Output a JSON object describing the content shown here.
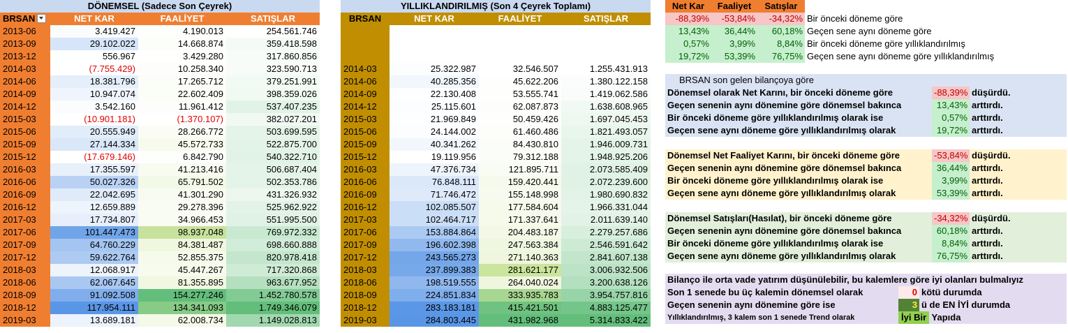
{
  "left": {
    "title": "DÖNEMSEL (Sadece Son Çeyrek)",
    "headers": [
      "BRSAN",
      "NET KAR",
      "FAALİYET",
      "SATIŞLAR"
    ],
    "rows": [
      [
        "2013-06",
        "3.419.427",
        "4.190.013",
        "254.561.746"
      ],
      [
        "2013-09",
        "29.102.022",
        "14.668.874",
        "359.418.598"
      ],
      [
        "2013-12",
        "556.967",
        "3.429.280",
        "317.860.856"
      ],
      [
        "2014-03",
        "(7.755.429)",
        "10.258.340",
        "323.590.713"
      ],
      [
        "2014-06",
        "18.381.796",
        "17.265.712",
        "379.251.991"
      ],
      [
        "2014-09",
        "10.947.074",
        "22.602.409",
        "398.359.026"
      ],
      [
        "2014-12",
        "3.542.160",
        "11.961.412",
        "537.407.235"
      ],
      [
        "2015-03",
        "(10.901.181)",
        "(1.370.107)",
        "382.027.201"
      ],
      [
        "2015-06",
        "20.555.949",
        "28.266.772",
        "503.699.595"
      ],
      [
        "2015-09",
        "27.144.334",
        "45.572.733",
        "522.875.700"
      ],
      [
        "2015-12",
        "(17.679.146)",
        "6.842.790",
        "540.322.710"
      ],
      [
        "2016-03",
        "17.355.597",
        "41.213.416",
        "506.687.404"
      ],
      [
        "2016-06",
        "50.027.326",
        "65.791.502",
        "502.353.786"
      ],
      [
        "2016-09",
        "22.042.695",
        "41.301.290",
        "431.326.932"
      ],
      [
        "2016-12",
        "12.659.889",
        "29.278.396",
        "525.962.922"
      ],
      [
        "2017-03",
        "17.734.807",
        "34.966.453",
        "551.995.500"
      ],
      [
        "2017-06",
        "101.447.473",
        "98.937.048",
        "769.972.332"
      ],
      [
        "2017-09",
        "64.760.229",
        "84.381.487",
        "698.660.888"
      ],
      [
        "2017-12",
        "59.622.764",
        "52.855.375",
        "820.978.418"
      ],
      [
        "2018-03",
        "12.068.917",
        "45.447.267",
        "717.320.868"
      ],
      [
        "2018-06",
        "62.067.645",
        "81.355.895",
        "963.677.952"
      ],
      [
        "2018-09",
        "91.092.508",
        "154.277.246",
        "1.452.780.578"
      ],
      [
        "2018-12",
        "117.954.111",
        "134.341.093",
        "1.749.346.079"
      ],
      [
        "2019-03",
        "13.689.181",
        "62.008.734",
        "1.149.028.813"
      ]
    ]
  },
  "middle": {
    "title": "YILLIKLANDIRILMIŞ (Son 4 Çeyrek Toplamı)",
    "headers": [
      "BRSAN",
      "NET KAR",
      "FAALİYET",
      "SATIŞLAR"
    ],
    "rows": [
      [
        "2014-03",
        "25.322.987",
        "32.546.507",
        "1.255.431.913"
      ],
      [
        "2014-06",
        "40.285.356",
        "45.622.206",
        "1.380.122.158"
      ],
      [
        "2014-09",
        "22.130.408",
        "53.555.741",
        "1.419.062.586"
      ],
      [
        "2014-12",
        "25.115.601",
        "62.087.873",
        "1.638.608.965"
      ],
      [
        "2015-03",
        "21.969.849",
        "50.459.426",
        "1.697.045.453"
      ],
      [
        "2015-06",
        "24.144.002",
        "61.460.486",
        "1.821.493.057"
      ],
      [
        "2015-09",
        "40.341.262",
        "84.430.810",
        "1.946.009.731"
      ],
      [
        "2015-12",
        "19.119.956",
        "79.312.188",
        "1.948.925.206"
      ],
      [
        "2016-03",
        "47.376.734",
        "121.895.711",
        "2.073.585.409"
      ],
      [
        "2016-06",
        "76.848.111",
        "159.420.441",
        "2.072.239.600"
      ],
      [
        "2016-09",
        "71.746.472",
        "155.148.998",
        "1.980.690.832"
      ],
      [
        "2016-12",
        "102.085.507",
        "177.584.604",
        "1.966.331.044"
      ],
      [
        "2017-03",
        "102.464.717",
        "171.337.641",
        "2.011.639.140"
      ],
      [
        "2017-06",
        "153.884.864",
        "204.483.187",
        "2.279.257.686"
      ],
      [
        "2017-09",
        "196.602.398",
        "247.563.384",
        "2.546.591.642"
      ],
      [
        "2017-12",
        "243.565.273",
        "271.140.363",
        "2.841.607.138"
      ],
      [
        "2018-03",
        "237.899.383",
        "281.621.177",
        "3.006.932.506"
      ],
      [
        "2018-06",
        "198.519.555",
        "264.040.024",
        "3.200.638.126"
      ],
      [
        "2018-09",
        "224.851.834",
        "333.935.783",
        "3.954.757.816"
      ],
      [
        "2018-12",
        "283.183.181",
        "415.421.501",
        "4.883.125.477"
      ],
      [
        "2019-03",
        "284.803.445",
        "431.982.968",
        "5.314.833.422"
      ]
    ]
  },
  "right": {
    "headers": [
      "Net Kar",
      "Faaliyet",
      "Satışlar"
    ],
    "summary": [
      [
        "-88,39%",
        "-53,84%",
        "-34,32%",
        "Bir önceki döneme göre"
      ],
      [
        "13,43%",
        "36,44%",
        "60,18%",
        "Geçen sene aynı döneme göre"
      ],
      [
        "0,57%",
        "3,99%",
        "8,84%",
        "Bir önceki döneme göre yıllıklandırılmış"
      ],
      [
        "19,72%",
        "53,39%",
        "76,75%",
        "Geçen sene aynı döneme göre yıllıklandırılmış"
      ]
    ],
    "intro": "BRSAN   son gelen bilançoya göre",
    "netkar": [
      [
        "Dönemsel olarak Net Karını, bir önceki döneme göre",
        "-88,39%",
        "düşürdü."
      ],
      [
        "Geçen senenin aynı dönemine göre dönemsel bakınca",
        "13,43%",
        "arttırdı."
      ],
      [
        "Bir önceki döneme göre yıllıklandırılmış olarak ise",
        "0,57%",
        "arttırdı."
      ],
      [
        "Geçen sene aynı döneme göre yıllıklandırılmış olarak",
        "19,72%",
        "arttırdı."
      ]
    ],
    "faaliyet": [
      [
        "Dönemsel Net Faaliyet Karını, bir önceki döneme göre",
        "-53,84%",
        "düşürdü."
      ],
      [
        "Geçen senenin aynı dönemine göre dönemsel bakınca",
        "36,44%",
        "arttırdı."
      ],
      [
        "Bir önceki döneme göre yıllıklandırılmış olarak ise",
        "3,99%",
        "arttırdı."
      ],
      [
        "Geçen sene aynı döneme göre yıllıklandırılmış olarak",
        "53,39%",
        "arttırdı."
      ]
    ],
    "satis": [
      [
        "Dönemsel Satışları(Hasılat), bir önceki döneme göre",
        "-34,32%",
        "düşürdü."
      ],
      [
        "Geçen senenin aynı dönemine göre dönemsel bakınca",
        "60,18%",
        "arttırdı."
      ],
      [
        "Bir önceki döneme göre yıllıklandırılmış olarak ise",
        "8,84%",
        "arttırdı."
      ],
      [
        "Geçen sene aynı döneme göre yıllıklandırılmış olarak",
        "76,75%",
        "arttırdı."
      ]
    ],
    "bottom": {
      "line1": "Bilanço ile orta vade yatırım düşünülebilir, bu kalemlere göre iyi olanları bulmalıyız",
      "line2_text": "Son 1 senede bu üç kalemin dönemsel olarak",
      "line2_val": "0",
      "line2_tail": "kötü durumda",
      "line3_text": "Geçen senenin aynı dönemine göre ise",
      "line3_val": "3",
      "line3_tail": "ü de   EN İYİ   durumda",
      "line4_text": "Yıllıklandırılmış, 3 kalem son 1 senede Trend olarak",
      "line4_val": "İyi Bir",
      "line4_tail": "Yapıda"
    }
  },
  "colors": {
    "orange": "#f07e30",
    "gold": "#c08e00",
    "blue_light": "#dae3f3",
    "green_strong": "#63be7b",
    "neg_red": "#e00000"
  }
}
